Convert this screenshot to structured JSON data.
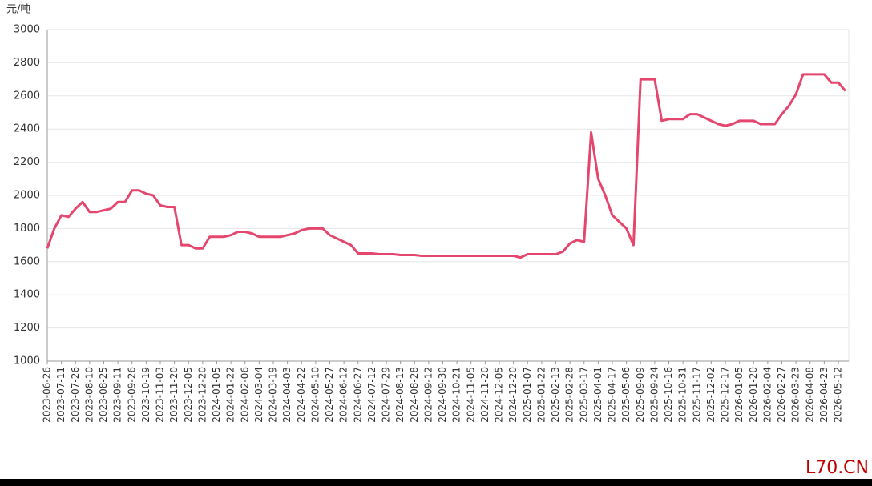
{
  "chart_data": {
    "type": "line",
    "y_unit": "元/吨",
    "categories": [
      "2023-06-26",
      null,
      "2023-07-11",
      null,
      "2023-07-26",
      null,
      "2023-08-10",
      null,
      "2023-08-25",
      null,
      "2023-09-11",
      null,
      "2023-09-26",
      null,
      "2023-10-19",
      null,
      "2023-11-03",
      null,
      "2023-11-20",
      null,
      "2023-12-05",
      null,
      "2023-12-20",
      null,
      "2024-01-05",
      null,
      "2024-01-22",
      null,
      "2024-02-06",
      null,
      "2024-03-04",
      null,
      "2024-03-19",
      null,
      "2024-04-03",
      null,
      "2024-04-22",
      null,
      "2024-05-10",
      null,
      "2024-05-27",
      null,
      "2024-06-12",
      null,
      "2024-06-27",
      null,
      "2024-07-12",
      null,
      "2024-07-29",
      null,
      "2024-08-13",
      null,
      "2024-08-28",
      null,
      "2024-09-12",
      null,
      "2024-09-30",
      null,
      "2024-10-21",
      null,
      "2024-11-05",
      null,
      "2024-11-20",
      null,
      "2024-12-05",
      null,
      "2024-12-20",
      null,
      "2025-01-07",
      null,
      "2025-01-22",
      null,
      "2025-02-13",
      null,
      "2025-02-28",
      null,
      "2025-03-17",
      null,
      "2025-04-01",
      null,
      "2025-04-17",
      null,
      "2025-05-06",
      null,
      "2025-09-09",
      null,
      "2025-09-24",
      null,
      "2025-10-16",
      null,
      "2025-10-31",
      null,
      "2025-11-17",
      null,
      "2025-12-02",
      null,
      "2025-12-17",
      null,
      "2026-01-05",
      null,
      "2026-01-20",
      null,
      "2026-02-04",
      null,
      "2026-02-27",
      null,
      "2026-03-23",
      null,
      "2026-04-08",
      null,
      "2026-04-23",
      null,
      "2026-05-12",
      null
    ],
    "values": [
      1680,
      1800,
      1880,
      1870,
      1920,
      1960,
      1900,
      1900,
      1910,
      1920,
      1960,
      1960,
      2030,
      2030,
      2010,
      2000,
      1940,
      1930,
      1930,
      1700,
      1700,
      1680,
      1680,
      1750,
      1750,
      1750,
      1760,
      1780,
      1780,
      1770,
      1750,
      1750,
      1750,
      1750,
      1760,
      1770,
      1790,
      1800,
      1800,
      1800,
      1760,
      1740,
      1720,
      1700,
      1650,
      1650,
      1650,
      1645,
      1645,
      1645,
      1640,
      1640,
      1640,
      1635,
      1635,
      1635,
      1635,
      1635,
      1635,
      1635,
      1635,
      1635,
      1635,
      1635,
      1635,
      1635,
      1635,
      1625,
      1645,
      1645,
      1645,
      1645,
      1645,
      1660,
      1710,
      1730,
      1720,
      2380,
      2100,
      2000,
      1880,
      1840,
      1800,
      1700,
      2700,
      2700,
      2700,
      2450,
      2460,
      2460,
      2460,
      2490,
      2490,
      2470,
      2450,
      2430,
      2420,
      2430,
      2450,
      2450,
      2450,
      2430,
      2430,
      2430,
      2490,
      2540,
      2610,
      2730,
      2730,
      2730,
      2730,
      2680,
      2680,
      2630
    ],
    "color": "#e5466e",
    "ylim": [
      1000,
      3000
    ],
    "yticks": [
      1000,
      1200,
      1400,
      1600,
      1800,
      2000,
      2200,
      2400,
      2600,
      2800,
      3000
    ],
    "grid": true
  },
  "watermark": "L70.CN"
}
